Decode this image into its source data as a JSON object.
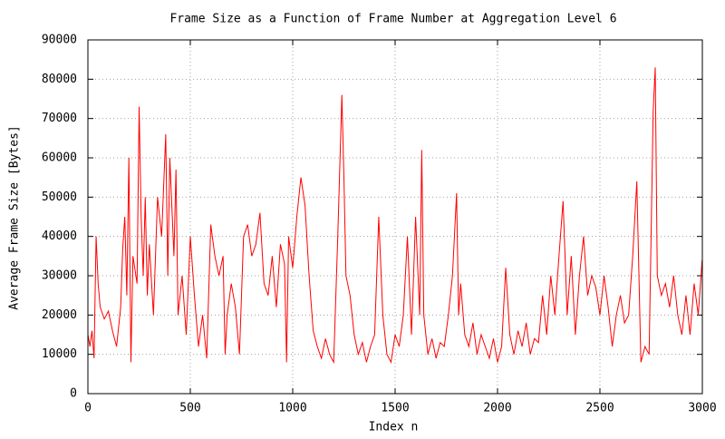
{
  "chart_data": {
    "type": "line",
    "title": "Frame Size as a Function of Frame Number at Aggregation Level 6",
    "x_label": "Index n",
    "y_label": "Average Frame Size [Bytes]",
    "xlim": [
      0,
      3000
    ],
    "xticks": [
      0,
      500,
      1000,
      1500,
      2000,
      2500,
      3000
    ],
    "ylim": [
      0,
      90000
    ],
    "yticks": [
      0,
      10000,
      20000,
      30000,
      40000,
      50000,
      60000,
      70000,
      80000,
      90000
    ],
    "grid": true,
    "series": [
      {
        "color": "#ff0000",
        "x": [
          0,
          10,
          20,
          30,
          40,
          50,
          60,
          80,
          100,
          120,
          140,
          160,
          170,
          180,
          190,
          200,
          210,
          220,
          240,
          250,
          260,
          270,
          280,
          290,
          300,
          320,
          340,
          360,
          380,
          390,
          400,
          420,
          430,
          440,
          460,
          480,
          500,
          520,
          540,
          560,
          580,
          600,
          620,
          640,
          660,
          670,
          680,
          700,
          720,
          740,
          760,
          780,
          800,
          820,
          840,
          860,
          880,
          900,
          920,
          940,
          960,
          970,
          980,
          1000,
          1020,
          1040,
          1060,
          1080,
          1100,
          1120,
          1140,
          1160,
          1180,
          1200,
          1220,
          1240,
          1250,
          1260,
          1280,
          1300,
          1320,
          1340,
          1360,
          1380,
          1400,
          1420,
          1440,
          1460,
          1480,
          1500,
          1520,
          1540,
          1560,
          1580,
          1600,
          1620,
          1630,
          1640,
          1660,
          1680,
          1700,
          1720,
          1740,
          1760,
          1780,
          1800,
          1810,
          1820,
          1840,
          1860,
          1880,
          1900,
          1920,
          1940,
          1960,
          1980,
          2000,
          2020,
          2040,
          2060,
          2080,
          2100,
          2120,
          2140,
          2160,
          2180,
          2200,
          2220,
          2240,
          2260,
          2280,
          2300,
          2320,
          2340,
          2360,
          2380,
          2400,
          2420,
          2440,
          2460,
          2480,
          2500,
          2520,
          2540,
          2560,
          2580,
          2600,
          2620,
          2640,
          2660,
          2680,
          2700,
          2720,
          2740,
          2760,
          2770,
          2780,
          2800,
          2820,
          2840,
          2860,
          2880,
          2900,
          2920,
          2940,
          2960,
          2980,
          2999
        ],
        "values": [
          15000,
          12000,
          16000,
          9000,
          40000,
          28000,
          22000,
          19000,
          21000,
          16000,
          12000,
          22000,
          37000,
          45000,
          25000,
          60000,
          8000,
          35000,
          28000,
          73000,
          45000,
          30000,
          50000,
          25000,
          38000,
          20000,
          50000,
          40000,
          66000,
          30000,
          60000,
          35000,
          57000,
          20000,
          30000,
          15000,
          40000,
          25000,
          12000,
          20000,
          9000,
          43000,
          35000,
          30000,
          35000,
          10000,
          20000,
          28000,
          22000,
          10000,
          40000,
          43000,
          35000,
          38000,
          46000,
          28000,
          25000,
          35000,
          22000,
          38000,
          33000,
          8000,
          40000,
          32000,
          45000,
          55000,
          48000,
          30000,
          16000,
          12000,
          9000,
          14000,
          10000,
          8000,
          40000,
          76000,
          55000,
          30000,
          25000,
          15000,
          10000,
          13000,
          8000,
          12000,
          15000,
          45000,
          20000,
          10000,
          8000,
          15000,
          12000,
          20000,
          40000,
          15000,
          45000,
          20000,
          62000,
          20000,
          10000,
          14000,
          9000,
          13000,
          12000,
          20000,
          30000,
          51000,
          20000,
          28000,
          15000,
          12000,
          18000,
          10000,
          15000,
          12000,
          9000,
          14000,
          8000,
          12000,
          32000,
          15000,
          10000,
          16000,
          12000,
          18000,
          10000,
          14000,
          13000,
          25000,
          15000,
          30000,
          20000,
          35000,
          49000,
          20000,
          35000,
          15000,
          30000,
          40000,
          25000,
          30000,
          27000,
          20000,
          30000,
          22000,
          12000,
          20000,
          25000,
          18000,
          20000,
          35000,
          54000,
          8000,
          12000,
          10000,
          72000,
          83000,
          30000,
          25000,
          28000,
          22000,
          30000,
          20000,
          15000,
          25000,
          15000,
          28000,
          20000,
          34000
        ]
      }
    ]
  }
}
